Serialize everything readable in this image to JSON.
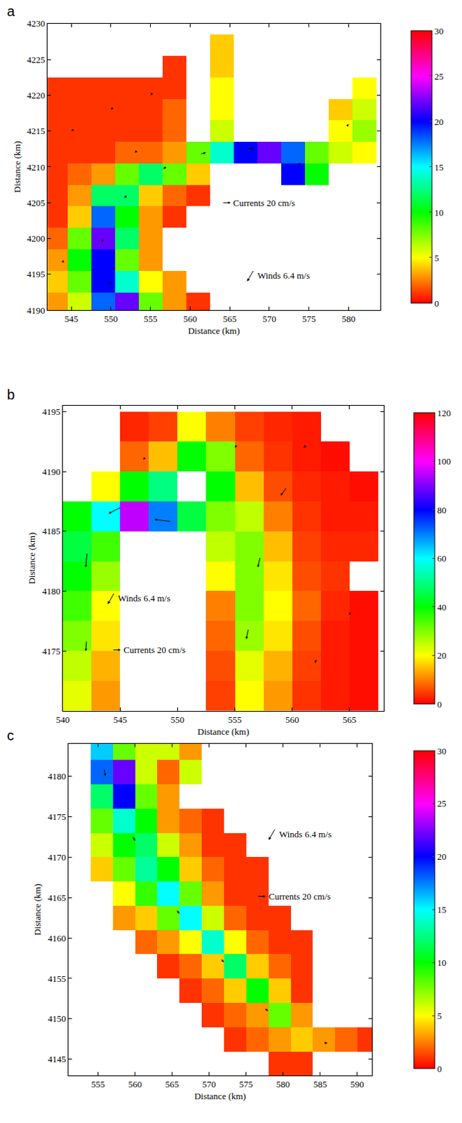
{
  "chart_data": [
    {
      "type": "heatmap",
      "panel": "a",
      "xlabel": "Distance (km)",
      "ylabel": "Distance (km)",
      "xlim": [
        542,
        584
      ],
      "ylim": [
        4190,
        4230
      ],
      "xticks": [
        545,
        550,
        555,
        560,
        565,
        570,
        575,
        580
      ],
      "yticks": [
        4190,
        4195,
        4200,
        4205,
        4210,
        4215,
        4220,
        4225,
        4230
      ],
      "x": [
        543,
        546,
        549,
        552,
        555,
        558,
        561,
        564,
        567,
        570,
        573,
        576,
        579,
        582
      ],
      "y": [
        4191,
        4194,
        4197,
        4200,
        4203,
        4206,
        4209,
        4212,
        4215,
        4218,
        4221,
        4224,
        4227
      ],
      "z": [
        [
          3,
          6,
          18,
          22,
          8,
          3,
          1,
          null,
          null,
          null,
          null,
          null,
          null,
          null
        ],
        [
          4,
          8,
          20,
          14,
          5,
          3,
          null,
          null,
          null,
          null,
          null,
          null,
          null,
          null
        ],
        [
          3,
          10,
          20,
          8,
          3,
          null,
          null,
          null,
          null,
          null,
          null,
          null,
          null,
          null
        ],
        [
          2,
          8,
          22,
          12,
          3,
          null,
          null,
          null,
          null,
          null,
          null,
          null,
          null,
          null
        ],
        [
          1,
          4,
          18,
          10,
          3,
          1,
          null,
          null,
          null,
          null,
          null,
          null,
          null,
          null
        ],
        [
          1,
          3,
          12,
          12,
          4,
          2,
          1,
          null,
          null,
          null,
          null,
          null,
          null,
          null
        ],
        [
          1,
          2,
          3,
          8,
          12,
          8,
          4,
          null,
          null,
          null,
          20,
          10,
          null,
          null
        ],
        [
          1,
          1,
          1,
          2,
          2,
          3,
          8,
          14,
          20,
          22,
          18,
          8,
          6,
          5
        ],
        [
          1,
          1,
          1,
          1,
          1,
          2,
          null,
          6,
          null,
          null,
          null,
          null,
          5,
          7
        ],
        [
          1,
          1,
          1,
          1,
          1,
          2,
          null,
          5,
          null,
          null,
          null,
          null,
          4,
          6
        ],
        [
          1,
          1,
          1,
          1,
          1,
          1,
          null,
          5,
          null,
          null,
          null,
          null,
          null,
          5
        ],
        [
          null,
          null,
          null,
          null,
          null,
          1,
          null,
          4,
          null,
          null,
          null,
          null,
          null,
          null
        ],
        [
          null,
          null,
          null,
          null,
          null,
          null,
          null,
          4,
          null,
          null,
          null,
          null,
          null,
          null
        ]
      ],
      "colorbar": {
        "range": [
          0,
          30
        ],
        "ticks": [
          0,
          5,
          10,
          15,
          20,
          25,
          30
        ]
      },
      "currents": {
        "label": "Currents 20 cm/s",
        "key_speed": 20,
        "vectors": [
          [
            545,
            4215,
            -4,
            -3
          ],
          [
            550,
            4218,
            -4,
            -4
          ],
          [
            555,
            4220,
            -3,
            -4
          ],
          [
            547,
            4208,
            -3,
            -3
          ],
          [
            553,
            4212,
            -4,
            -3
          ],
          [
            558,
            4215,
            -3,
            -3
          ],
          [
            550,
            4194,
            4,
            10
          ],
          [
            549,
            4200,
            3,
            12
          ],
          [
            552,
            4206,
            8,
            8
          ],
          [
            557,
            4210,
            10,
            6
          ],
          [
            562,
            4212,
            14,
            4
          ],
          [
            568,
            4212.5,
            16,
            -2
          ],
          [
            574,
            4210.5,
            10,
            4
          ],
          [
            580,
            4216,
            4,
            6
          ],
          [
            558,
            4193,
            3,
            2
          ],
          [
            544,
            4197,
            1,
            4
          ]
        ]
      },
      "winds": {
        "label": "Winds 6.4 m/s",
        "u": -3.2,
        "v": -5.5
      }
    },
    {
      "type": "heatmap",
      "panel": "b",
      "xlabel": "Distance (km)",
      "ylabel": "Distance (km)",
      "xlim": [
        540,
        568
      ],
      "ylim": [
        4170,
        4195.5
      ],
      "xticks": [
        540,
        545,
        550,
        555,
        560,
        565
      ],
      "yticks": [
        4175,
        4180,
        4185,
        4190,
        4195
      ],
      "x": [
        541.25,
        543.75,
        546.25,
        548.75,
        551.25,
        553.75,
        556.25,
        558.75,
        561.25,
        563.75,
        566.25
      ],
      "y": [
        4171.25,
        4173.75,
        4176.25,
        4178.75,
        4181.25,
        4183.75,
        4186.25,
        4188.75,
        4191.25,
        4193.75
      ],
      "z": [
        [
          22,
          12,
          null,
          null,
          null,
          5,
          20,
          12,
          4,
          2,
          1
        ],
        [
          25,
          14,
          null,
          null,
          null,
          6,
          22,
          14,
          5,
          2,
          1
        ],
        [
          30,
          18,
          null,
          null,
          null,
          8,
          28,
          18,
          6,
          2,
          1
        ],
        [
          35,
          20,
          null,
          null,
          null,
          10,
          30,
          20,
          8,
          3,
          1
        ],
        [
          40,
          28,
          null,
          null,
          null,
          20,
          30,
          18,
          6,
          4,
          null
        ],
        [
          45,
          35,
          null,
          null,
          null,
          25,
          30,
          15,
          5,
          3,
          3
        ],
        [
          40,
          60,
          95,
          70,
          45,
          30,
          25,
          10,
          4,
          2,
          2
        ],
        [
          null,
          20,
          40,
          50,
          null,
          40,
          15,
          6,
          3,
          2,
          1
        ],
        [
          null,
          null,
          8,
          15,
          40,
          30,
          8,
          4,
          2,
          1,
          null
        ],
        [
          null,
          null,
          3,
          5,
          20,
          10,
          5,
          3,
          2,
          null,
          null
        ]
      ],
      "colorbar": {
        "range": [
          0,
          120
        ],
        "ticks": [
          0,
          20,
          40,
          60,
          80,
          100,
          120
        ]
      },
      "currents": {
        "label": "Currents 20 cm/s",
        "key_speed": 20,
        "vectors": [
          [
            542,
            4175,
            -2,
            -25
          ],
          [
            542,
            4182,
            -3,
            -35
          ],
          [
            544,
            4186.5,
            -30,
            -15
          ],
          [
            548,
            4186,
            -40,
            5
          ],
          [
            556,
            4176,
            -5,
            -25
          ],
          [
            557,
            4182,
            -6,
            -25
          ],
          [
            559,
            4188,
            -15,
            -20
          ],
          [
            562,
            4174,
            -3,
            -10
          ],
          [
            565,
            4178,
            -2,
            -8
          ],
          [
            555,
            4192,
            -6,
            -8
          ],
          [
            547,
            4191,
            -4,
            -4
          ],
          [
            561,
            4192,
            -5,
            -5
          ]
        ]
      },
      "winds": {
        "label": "Winds 6.4 m/s",
        "u": -3.2,
        "v": -5.5
      }
    },
    {
      "type": "heatmap",
      "panel": "c",
      "xlabel": "Distance (km)",
      "ylabel": "Distance (km)",
      "xlim": [
        551,
        592
      ],
      "ylim": [
        4143,
        4184
      ],
      "xticks": [
        555,
        560,
        565,
        570,
        575,
        580,
        585,
        590
      ],
      "yticks": [
        4145,
        4150,
        4155,
        4160,
        4165,
        4170,
        4175,
        4180
      ],
      "x": [
        552.5,
        555.5,
        558.5,
        561.5,
        564.5,
        567.5,
        570.5,
        573.5,
        576.5,
        579.5,
        582.5,
        585.5,
        588.5,
        591.5
      ],
      "y": [
        4144.5,
        4147.5,
        4150.5,
        4153.5,
        4156.5,
        4159.5,
        4162.5,
        4165.5,
        4168.5,
        4171.5,
        4174.5,
        4177.5,
        4180.5,
        4183.5
      ],
      "z": [
        [
          null,
          null,
          null,
          null,
          null,
          null,
          null,
          null,
          null,
          1,
          1,
          null,
          null,
          null
        ],
        [
          null,
          null,
          null,
          null,
          null,
          null,
          null,
          1,
          2,
          3,
          4,
          3,
          2,
          1
        ],
        [
          null,
          null,
          null,
          null,
          null,
          null,
          1,
          2,
          3,
          8,
          3,
          null,
          null,
          null
        ],
        [
          null,
          null,
          null,
          null,
          null,
          1,
          2,
          4,
          10,
          4,
          1,
          null,
          null,
          null
        ],
        [
          null,
          null,
          null,
          null,
          1,
          2,
          4,
          12,
          4,
          2,
          1,
          null,
          null,
          null
        ],
        [
          null,
          null,
          null,
          2,
          3,
          5,
          14,
          5,
          2,
          1,
          1,
          null,
          null,
          null
        ],
        [
          null,
          null,
          3,
          4,
          8,
          15,
          6,
          2,
          1,
          1,
          null,
          null,
          null,
          null
        ],
        [
          null,
          null,
          5,
          9,
          15,
          8,
          3,
          1,
          1,
          null,
          null,
          null,
          null,
          null
        ],
        [
          null,
          4,
          8,
          13,
          10,
          4,
          2,
          1,
          1,
          null,
          null,
          null,
          null,
          null
        ],
        [
          null,
          6,
          10,
          12,
          6,
          3,
          1,
          1,
          null,
          null,
          null,
          null,
          null,
          null
        ],
        [
          null,
          8,
          14,
          10,
          3,
          2,
          1,
          null,
          null,
          null,
          null,
          null,
          null,
          null
        ],
        [
          null,
          12,
          20,
          8,
          3,
          null,
          null,
          null,
          null,
          null,
          null,
          null,
          null,
          null
        ],
        [
          null,
          18,
          22,
          6,
          2,
          6,
          null,
          null,
          null,
          null,
          null,
          null,
          null,
          null
        ],
        [
          null,
          16,
          8,
          6,
          6,
          3,
          null,
          null,
          null,
          null,
          null,
          null,
          null,
          null
        ]
      ],
      "colorbar": {
        "range": [
          0,
          30
        ],
        "ticks": [
          0,
          5,
          10,
          15,
          20,
          25,
          30
        ]
      },
      "currents": {
        "label": "Currents 20 cm/s",
        "key_speed": 20,
        "vectors": [
          [
            556,
            4180,
            3,
            -18
          ],
          [
            560,
            4172,
            6,
            -12
          ],
          [
            566,
            4163,
            8,
            -10
          ],
          [
            572,
            4157,
            8,
            -9
          ],
          [
            578,
            4151,
            10,
            -5
          ],
          [
            586,
            4147,
            10,
            -1
          ],
          [
            570,
            4168,
            -3,
            -3
          ],
          [
            575,
            4163,
            -2,
            -3
          ],
          [
            564,
            4175,
            -2,
            -2
          ],
          [
            558,
            4165,
            -3,
            -2
          ],
          [
            580,
            4148,
            -2,
            -2
          ],
          [
            578,
            4158,
            -2,
            -3
          ]
        ]
      },
      "winds": {
        "label": "Winds 6.4 m/s",
        "u": -3.2,
        "v": -5.5
      }
    }
  ]
}
